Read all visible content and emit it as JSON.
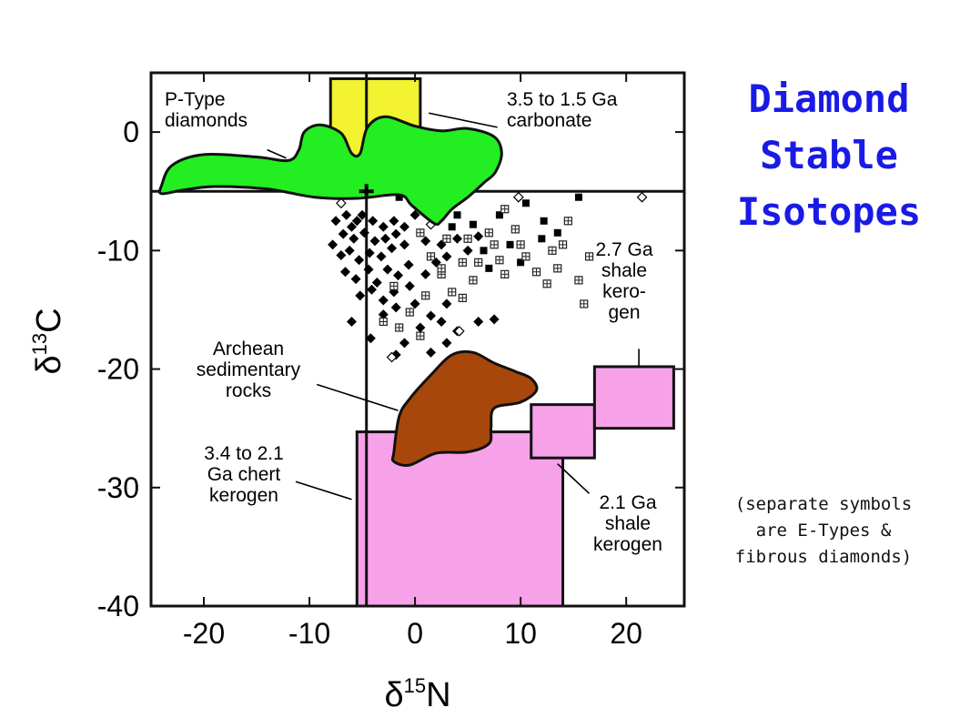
{
  "slide": {
    "title_lines": [
      "Diamond",
      "Stable",
      "Isotopes"
    ],
    "note_lines": [
      "(separate symbols",
      "are E-Types &",
      "fibrous diamonds)"
    ]
  },
  "colors": {
    "title": "#1a1ae6",
    "p_type": "#22ee22",
    "carbonate": "#f2f230",
    "kerogen": "#f7a1e8",
    "archean": "#a8470b",
    "frame": "#111111"
  },
  "chart_data": {
    "type": "scatter",
    "xlabel": "δ15N",
    "ylabel": "δ13C",
    "xlim": [
      -25,
      25.5
    ],
    "ylim": [
      -40,
      5
    ],
    "xticks": [
      -20,
      -10,
      0,
      10,
      20
    ],
    "yticks": [
      0,
      -10,
      -20,
      -30,
      -40
    ],
    "xtick_labels": [
      "-20",
      "-10",
      "0",
      "10",
      "20"
    ],
    "ytick_labels": [
      "0",
      "-10",
      "-20",
      "-30",
      "-40"
    ],
    "mantle_lines": {
      "x": -4.6,
      "y": -5
    },
    "mantle_marker": {
      "x": -4.6,
      "y": -5,
      "symbol": "+"
    },
    "regions": [
      {
        "name": "3.5 to 1.5 Ga carbonate",
        "shape": "rect",
        "x": [
          -8,
          0.5
        ],
        "y": [
          -5,
          4.5
        ],
        "color": "#f2f230"
      },
      {
        "name": "3.4 to 2.1 Ga chert kerogen",
        "shape": "rect",
        "x": [
          -5.5,
          14
        ],
        "y": [
          -40,
          -25.3
        ],
        "color": "#f7a1e8"
      },
      {
        "name": "2.1 Ga shale kerogen",
        "shape": "rect",
        "x": [
          11,
          17
        ],
        "y": [
          -27.5,
          -23
        ],
        "color": "#f7a1e8"
      },
      {
        "name": "2.7 Ga shale kerogen",
        "shape": "rect",
        "x": [
          17,
          24.5
        ],
        "y": [
          -25,
          -19.8
        ],
        "color": "#f7a1e8"
      },
      {
        "name": "Archean sedimentary rocks",
        "shape": "polygon",
        "color": "#a8470b",
        "points": [
          [
            -2,
            -27
          ],
          [
            -1.5,
            -24
          ],
          [
            -0.5,
            -22.5
          ],
          [
            1.5,
            -20.5
          ],
          [
            3.5,
            -18.8
          ],
          [
            5.5,
            -18.6
          ],
          [
            7.5,
            -19.5
          ],
          [
            9.5,
            -20.2
          ],
          [
            11,
            -20.8
          ],
          [
            11.5,
            -21.8
          ],
          [
            10,
            -22.8
          ],
          [
            7.5,
            -23.3
          ],
          [
            7.2,
            -25
          ],
          [
            7,
            -26.3
          ],
          [
            5,
            -27
          ],
          [
            2,
            -27.1
          ],
          [
            -0.5,
            -28.1
          ],
          [
            -2,
            -27.8
          ]
        ]
      },
      {
        "name": "P-Type diamonds",
        "shape": "polygon",
        "color": "#22ee22",
        "points": [
          [
            -24,
            -4.5
          ],
          [
            -23,
            -2.8
          ],
          [
            -20,
            -1.9
          ],
          [
            -15,
            -2.1
          ],
          [
            -12,
            -2.4
          ],
          [
            -11,
            -1.5
          ],
          [
            -10.5,
            0
          ],
          [
            -9,
            0.6
          ],
          [
            -7,
            -0.1
          ],
          [
            -6,
            -1.8
          ],
          [
            -5.2,
            -1.8
          ],
          [
            -4.5,
            0.4
          ],
          [
            -2.8,
            1.3
          ],
          [
            0,
            0.5
          ],
          [
            2.5,
            0.1
          ],
          [
            5,
            0.3
          ],
          [
            7.5,
            -0.4
          ],
          [
            8.2,
            -1.8
          ],
          [
            7.6,
            -3.4
          ],
          [
            6.5,
            -4.3
          ],
          [
            5,
            -5.5
          ],
          [
            3.5,
            -6.5
          ],
          [
            2.5,
            -7.5
          ],
          [
            1.8,
            -7.7
          ],
          [
            -0.3,
            -6.2
          ],
          [
            -1.5,
            -5.3
          ],
          [
            -5.5,
            -5.6
          ],
          [
            -9.5,
            -5.5
          ],
          [
            -14,
            -4.8
          ],
          [
            -19,
            -4.6
          ],
          [
            -22,
            -4.9
          ],
          [
            -24,
            -5.2
          ]
        ]
      }
    ],
    "series": [
      {
        "marker": "filled-diamond",
        "points": [
          [
            -7.5,
            -7.5
          ],
          [
            -6.5,
            -7
          ],
          [
            -6,
            -8
          ],
          [
            -5.5,
            -7.5
          ],
          [
            -5,
            -7
          ],
          [
            -4,
            -7.5
          ],
          [
            -3,
            -8
          ],
          [
            -2,
            -7.5
          ],
          [
            -1,
            -8
          ],
          [
            0,
            -7
          ],
          [
            -6.8,
            -8.6
          ],
          [
            -5.8,
            -9
          ],
          [
            -4.8,
            -8.5
          ],
          [
            -3.8,
            -9.2
          ],
          [
            -2.8,
            -9
          ],
          [
            -1.8,
            -8.6
          ],
          [
            -7.8,
            -9.5
          ],
          [
            -7,
            -10.4
          ],
          [
            -6.2,
            -10
          ],
          [
            -5.3,
            -10.8
          ],
          [
            -4.3,
            -10.2
          ],
          [
            -3.2,
            -10.5
          ],
          [
            -2.2,
            -9.8
          ],
          [
            -1,
            -9.5
          ],
          [
            -6.6,
            -11.8
          ],
          [
            -5.6,
            -12.4
          ],
          [
            -4.4,
            -11.6
          ],
          [
            -3.6,
            -12.7
          ],
          [
            -2.6,
            -11.6
          ],
          [
            -1.6,
            -12.1
          ],
          [
            -0.6,
            -11.2
          ],
          [
            -5.2,
            -13.8
          ],
          [
            -4.1,
            -13.3
          ],
          [
            -3,
            -14.2
          ],
          [
            -2,
            -13.5
          ],
          [
            -0.5,
            -13
          ],
          [
            1,
            -12
          ],
          [
            2,
            -11
          ],
          [
            -3,
            -15.4
          ],
          [
            -1.8,
            -14.8
          ],
          [
            0,
            -14.5
          ],
          [
            1.5,
            -15.5
          ],
          [
            3,
            -14.5
          ],
          [
            -4.2,
            -17.4
          ],
          [
            -6,
            -16
          ],
          [
            -1,
            -17.8
          ],
          [
            0.5,
            -16.5
          ],
          [
            2.5,
            -16
          ],
          [
            6,
            -16
          ],
          [
            7.5,
            -15.8
          ],
          [
            4,
            -16.8
          ],
          [
            3,
            -17.8
          ],
          [
            1.5,
            -18.6
          ],
          [
            -1.8,
            -18.8
          ],
          [
            2.5,
            -9.5
          ],
          [
            3,
            -10.5
          ],
          [
            4,
            -9
          ],
          [
            5,
            -10
          ],
          [
            6,
            -8.8
          ],
          [
            1,
            -9.2
          ]
        ]
      },
      {
        "marker": "filled-square",
        "points": [
          [
            2.5,
            -6.5
          ],
          [
            4,
            -7
          ],
          [
            5.5,
            -7.8
          ],
          [
            8,
            -7
          ],
          [
            10.5,
            -6
          ],
          [
            12.2,
            -7.5
          ],
          [
            15.5,
            -5.5
          ],
          [
            3.5,
            -8
          ],
          [
            6.5,
            -10
          ],
          [
            9,
            -9.5
          ],
          [
            12,
            -9
          ],
          [
            13.5,
            -8.5
          ],
          [
            7,
            -11.5
          ],
          [
            10,
            -11
          ],
          [
            -1.5,
            -5.5
          ],
          [
            0.5,
            -6
          ]
        ]
      },
      {
        "marker": "hatched-square",
        "points": [
          [
            0.5,
            -8.5
          ],
          [
            1.5,
            -10.5
          ],
          [
            2.5,
            -12
          ],
          [
            3.5,
            -13.5
          ],
          [
            4.5,
            -11
          ],
          [
            5,
            -9
          ],
          [
            5.5,
            -12.5
          ],
          [
            6,
            -11
          ],
          [
            7,
            -8.5
          ],
          [
            7.5,
            -9.5
          ],
          [
            8,
            -10.8
          ],
          [
            8.5,
            -12
          ],
          [
            9.5,
            -8.2
          ],
          [
            10,
            -9.5
          ],
          [
            10.5,
            -10.5
          ],
          [
            11.5,
            -11.8
          ],
          [
            12.5,
            -12.8
          ],
          [
            13,
            -10
          ],
          [
            13.5,
            -11.5
          ],
          [
            14,
            -9.5
          ],
          [
            15.5,
            -12.5
          ],
          [
            16.5,
            -10.5
          ],
          [
            14.5,
            -7.5
          ],
          [
            3,
            -9
          ],
          [
            2.5,
            -11.5
          ],
          [
            1,
            -13.8
          ],
          [
            -0.5,
            -15.2
          ],
          [
            -1.5,
            -16.5
          ],
          [
            0.5,
            -17.2
          ],
          [
            -3,
            -16
          ],
          [
            -2,
            -13
          ],
          [
            4.5,
            -14
          ],
          [
            16,
            -14.5
          ],
          [
            8.5,
            -6.5
          ]
        ]
      },
      {
        "marker": "open-diamond",
        "points": [
          [
            9.8,
            -5.5
          ],
          [
            21.5,
            -5.5
          ],
          [
            4.2,
            -16.8
          ],
          [
            -2.2,
            -19
          ],
          [
            6.5,
            -20.2
          ],
          [
            1.5,
            -7.8
          ],
          [
            -7,
            -6
          ]
        ]
      }
    ],
    "annotations": [
      {
        "lines": [
          "P-Type",
          "diamonds"
        ],
        "leader": [
          [
            -14,
            -1.5
          ],
          [
            -12.2,
            -2.2
          ]
        ]
      },
      {
        "lines": [
          "3.5 to 1.5 Ga",
          "carbonate"
        ],
        "leader": [
          [
            7.8,
            0.4
          ],
          [
            1.3,
            1.6
          ]
        ]
      },
      {
        "lines": [
          "2.7 Ga",
          "shale",
          "kero-",
          "gen"
        ],
        "leader": [
          [
            21.2,
            -18.3
          ],
          [
            21.2,
            -19.8
          ]
        ]
      },
      {
        "lines": [
          "Archean",
          "sedimentary",
          "rocks"
        ],
        "leader": [
          [
            -9.3,
            -21.3
          ],
          [
            -1.6,
            -23.5
          ]
        ]
      },
      {
        "lines": [
          "3.4 to 2.1",
          "Ga chert",
          "kerogen"
        ],
        "leader": [
          [
            -11.3,
            -29.5
          ],
          [
            -6,
            -31
          ]
        ]
      },
      {
        "lines": [
          "2.1 Ga",
          "shale",
          "kerogen"
        ],
        "leader": [
          [
            16.5,
            -30.5
          ],
          [
            13.5,
            -28
          ]
        ]
      }
    ]
  }
}
